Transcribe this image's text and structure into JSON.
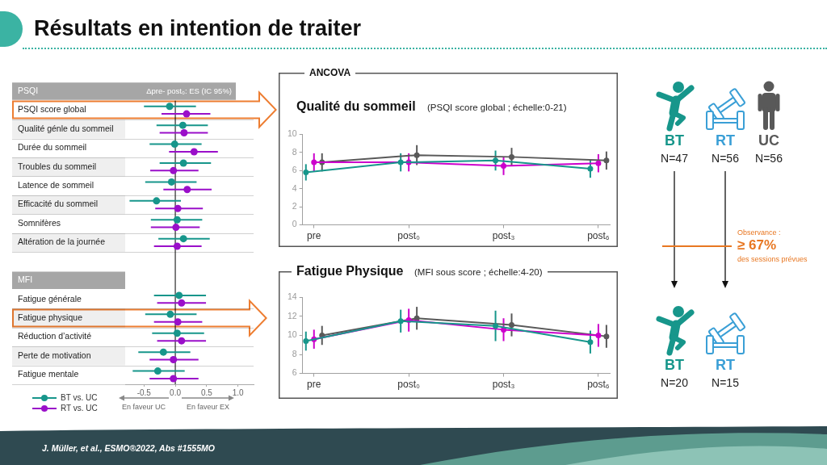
{
  "chart_data": [
    {
      "type": "other",
      "title": "Résultats en intention de traiter",
      "annotations": [
        "J. Müller, et al., ESMO®2022, Abs #1555MO"
      ]
    },
    {
      "type": "scatter",
      "orientation": "horizontal",
      "title": "Δpre- post₀: ES (IC 95%)",
      "categories": [
        "PSQI",
        "PSQI score global",
        "Qualité génle du sommeil",
        "Durée du sommeil",
        "Troubles du sommeil",
        "Latence de sommeil",
        "Efficacité du sommeil",
        "Somnifères",
        "Altération de la journée",
        null,
        "MFI",
        "Fatigue générale",
        "Fatigue physique",
        "Réduction d’activité",
        "Perte de motivation",
        "Fatigue mentale"
      ],
      "series": [
        {
          "name": "BT vs. UC",
          "color": "#17968b",
          "values": [
            null,
            -0.09,
            0.12,
            -0.01,
            0.13,
            -0.06,
            -0.3,
            0.03,
            0.13,
            null,
            null,
            0.06,
            -0.08,
            0.03,
            -0.19,
            -0.28
          ],
          "errors": [
            null,
            [
              -0.5,
              0.33
            ],
            [
              -0.3,
              0.52
            ],
            [
              -0.41,
              0.42
            ],
            [
              -0.25,
              0.57
            ],
            [
              -0.48,
              0.34
            ],
            [
              -0.73,
              0.09
            ],
            [
              -0.39,
              0.43
            ],
            [
              -0.27,
              0.55
            ],
            null,
            null,
            [
              -0.34,
              0.49
            ],
            [
              -0.48,
              0.34
            ],
            [
              -0.37,
              0.46
            ],
            [
              -0.59,
              0.24
            ],
            [
              -0.68,
              0.15
            ]
          ]
        },
        {
          "name": "RT vs. UC",
          "color": "#9a0fc9",
          "values": [
            null,
            0.18,
            0.14,
            0.3,
            -0.03,
            0.19,
            0.04,
            0.01,
            0.03,
            null,
            null,
            0.1,
            0.04,
            0.1,
            -0.03,
            -0.03
          ],
          "errors": [
            null,
            [
              -0.22,
              0.56
            ],
            [
              -0.25,
              0.52
            ],
            [
              -0.1,
              0.68
            ],
            [
              -0.4,
              0.37
            ],
            [
              -0.19,
              0.58
            ],
            [
              -0.32,
              0.44
            ],
            [
              -0.39,
              0.39
            ],
            [
              -0.34,
              0.42
            ],
            null,
            null,
            [
              -0.29,
              0.49
            ],
            [
              -0.34,
              0.43
            ],
            [
              -0.29,
              0.49
            ],
            [
              -0.41,
              0.37
            ],
            [
              -0.41,
              0.37
            ]
          ]
        }
      ],
      "xlim": [
        -0.8,
        1.25
      ],
      "xticks": [
        -0.5,
        {
          "value": 0,
          "label": "0.0"
        },
        0.5,
        {
          "value": 1,
          "label": "1.0"
        }
      ],
      "ref_lines": [
        {
          "axis": "x",
          "value": 0,
          "color": "#000000"
        }
      ],
      "marker": "circle",
      "legend": "bottom left",
      "annotations": [
        "En faveur UC",
        "En faveur EX"
      ]
    },
    {
      "type": "line",
      "title": "Qualité du sommeil",
      "subtitle": "(PSQI score global ; échelle:0-21)",
      "annotations": [
        "ANCOVA"
      ],
      "categories": [
        "pre",
        "post₀",
        "post₃",
        "post₆"
      ],
      "series": [
        {
          "color": "#17968b",
          "values": [
            5.8,
            6.9,
            7.1,
            6.2
          ],
          "errors": [
            0.9,
            1.0,
            1.1,
            1.0
          ]
        },
        {
          "color": "#cc00cc",
          "values": [
            6.9,
            6.9,
            6.5,
            6.8
          ],
          "errors": [
            1.0,
            1.0,
            1.0,
            1.0
          ]
        },
        {
          "color": "#595959",
          "values": [
            6.9,
            7.7,
            7.5,
            7.1
          ],
          "errors": [
            1.0,
            1.1,
            1.0,
            1.0
          ]
        }
      ],
      "ylim": [
        0,
        10
      ],
      "yticks": [
        0,
        2,
        4,
        6,
        8,
        10
      ],
      "marker": "circle"
    },
    {
      "type": "line",
      "title": "Fatigue Physique",
      "subtitle": "(MFI sous score ; échelle:4-20)",
      "categories": [
        "pre",
        "post₀",
        "post₃",
        "post₆"
      ],
      "series": [
        {
          "color": "#17968b",
          "values": [
            9.4,
            11.5,
            11.0,
            9.3
          ],
          "errors": [
            1.0,
            1.2,
            1.6,
            1.2
          ]
        },
        {
          "color": "#cc00cc",
          "values": [
            9.6,
            11.6,
            10.6,
            10.0
          ],
          "errors": [
            1.0,
            1.2,
            1.2,
            1.2
          ]
        },
        {
          "color": "#595959",
          "values": [
            10.0,
            11.8,
            11.1,
            9.9
          ],
          "errors": [
            1.0,
            1.2,
            1.2,
            1.2
          ]
        }
      ],
      "ylim": [
        6,
        14
      ],
      "yticks": [
        6,
        8,
        10,
        12,
        14
      ],
      "marker": "circle"
    },
    {
      "type": "other",
      "categories": [
        "BT",
        "RT",
        "UC"
      ],
      "colors": [
        "#17968b",
        "#3a9fd6",
        "#595959"
      ],
      "series": [
        {
          "values": [
            47,
            56,
            56
          ],
          "value_labels": [
            "N=47",
            "N=56",
            "N=56"
          ]
        },
        {
          "values": [
            20,
            15,
            null
          ],
          "value_labels": [
            "N=20",
            "N=15",
            null
          ]
        }
      ],
      "annotations": [
        "Observance :",
        "≥ 67%",
        "des sessions prévues"
      ]
    }
  ]
}
